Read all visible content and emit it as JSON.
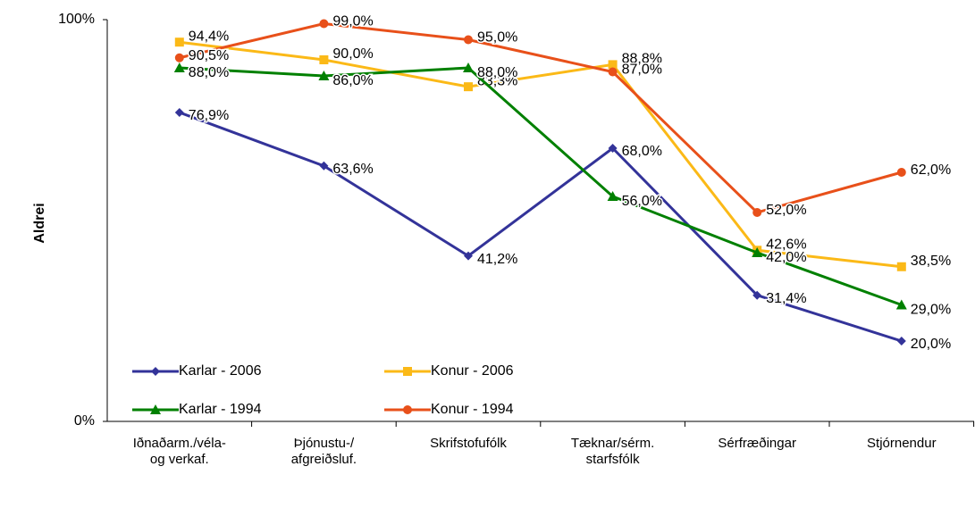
{
  "chart_data": {
    "type": "line",
    "y_label": "Aldrei",
    "categories": [
      "Iðnaðarm./véla-\nog verkaf.",
      "Þjónustu-/\nafgreiðsluf.",
      "Skrifstofufólk",
      "Tæknar/sérm.\nstarfsfólk",
      "Sérfræðingar",
      "Stjórnendur"
    ],
    "series": [
      {
        "name": "Karlar - 2006",
        "color": "#333399",
        "marker": "diamond",
        "values": [
          76.9,
          63.6,
          41.2,
          68.0,
          31.4,
          20.0
        ],
        "value_labels": [
          "76,9%",
          "63,6%",
          "41,2%",
          "68,0%",
          "31,4%",
          "20,0%"
        ]
      },
      {
        "name": "Konur - 2006",
        "color": "#fbb917",
        "marker": "square",
        "values": [
          94.4,
          90.0,
          83.3,
          88.8,
          42.6,
          38.5
        ],
        "value_labels": [
          "94,4%",
          "90,0%",
          "83,3%",
          "88,8%",
          "42,6%",
          "38,5%"
        ]
      },
      {
        "name": "Karlar - 1994",
        "color": "#008000",
        "marker": "triangle",
        "values": [
          88.0,
          86.0,
          88.0,
          56.0,
          42.0,
          29.0
        ],
        "value_labels": [
          "88,0%",
          "86,0%",
          "88,0%",
          "56,0%",
          "42,0%",
          "29,0%"
        ]
      },
      {
        "name": "Konur - 1994",
        "color": "#e8501a",
        "marker": "circle",
        "values": [
          90.5,
          99.0,
          95.0,
          87.0,
          52.0,
          62.0
        ],
        "value_labels": [
          "90,5%",
          "99,0%",
          "95,0%",
          "87,0%",
          "52,0%",
          "62,0%"
        ]
      }
    ],
    "ylim": [
      0,
      100
    ],
    "yticks": [
      {
        "value": 0,
        "label": "0%"
      },
      {
        "value": 100,
        "label": "100%"
      }
    ],
    "grid": false
  }
}
